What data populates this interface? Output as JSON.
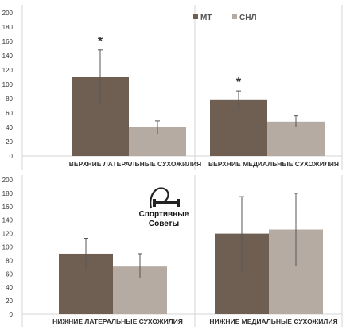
{
  "legend": [
    {
      "label": "МТ",
      "color": "#6f5f52"
    },
    {
      "label": "СНЛ",
      "color": "#b6aba3"
    }
  ],
  "watermark": {
    "line1": "Спортивные",
    "line2": "Советы"
  },
  "chart_data": [
    {
      "type": "bar",
      "categories": [
        "ВЕРХНИЕ ЛАТЕРАЛЬНЫЕ СУХОЖИЛИЯ",
        "ВЕРХНИЕ МЕДИАЛЬНЫЕ СУХОЖИЛИЯ"
      ],
      "series": [
        {
          "name": "МТ",
          "values": [
            110,
            78
          ],
          "errors": [
            38,
            13
          ],
          "color": "#6f5f52"
        },
        {
          "name": "СНЛ",
          "values": [
            40,
            48
          ],
          "errors": [
            9,
            8
          ],
          "color": "#b6aba3"
        }
      ],
      "annotations": [
        {
          "category": 0,
          "series": 0,
          "text": "*"
        },
        {
          "category": 1,
          "series": 0,
          "text": "*"
        }
      ],
      "ylim": [
        0,
        200
      ],
      "yticks": [
        0,
        20,
        40,
        60,
        80,
        100,
        120,
        140,
        160,
        180,
        200
      ],
      "grid": false,
      "legend_position": "top-right"
    },
    {
      "type": "bar",
      "categories": [
        "НИЖНИЕ ЛАТЕРАЛЬНЫЕ СУХОЖИЛИЯ",
        "НИЖНИЕ МЕДИАЛЬНЫЕ СУХОЖИЛИЯ"
      ],
      "series": [
        {
          "name": "МТ",
          "values": [
            90,
            120
          ],
          "errors": [
            23,
            55
          ],
          "color": "#6f5f52"
        },
        {
          "name": "СНЛ",
          "values": [
            72,
            126
          ],
          "errors": [
            18,
            54
          ],
          "color": "#b6aba3"
        }
      ],
      "annotations": [],
      "ylim": [
        0,
        200
      ],
      "yticks": [
        0,
        20,
        40,
        60,
        80,
        100,
        120,
        140,
        160,
        180,
        200
      ],
      "grid": false,
      "legend_position": "none"
    }
  ]
}
